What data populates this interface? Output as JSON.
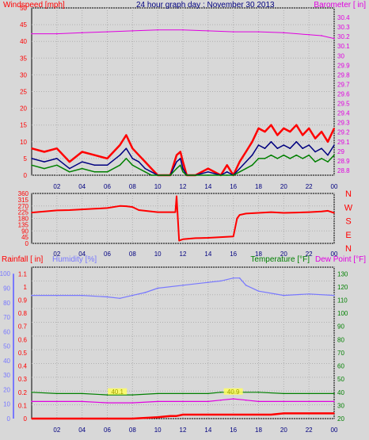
{
  "chart_data": [
    {
      "type": "line",
      "panel": "wind",
      "title": "24 hour graph day : November 30 2013",
      "ylabel_left": "Windspeed [mph]",
      "ylabel_right": "Barometer [ in]",
      "x_ticks": [
        "02",
        "04",
        "06",
        "08",
        "10",
        "12",
        "14",
        "16",
        "18",
        "20",
        "22",
        "00"
      ],
      "xlim": [
        0,
        24
      ],
      "left_ticks": [
        "0",
        "5",
        "10",
        "15",
        "20",
        "25",
        "30",
        "35",
        "40",
        "45",
        "50"
      ],
      "ylim_left": [
        0,
        50
      ],
      "right_ticks": [
        "28.8",
        "28.9",
        "29",
        "29.1",
        "29.2",
        "29.3",
        "29.4",
        "29.5",
        "29.6",
        "29.7",
        "29.8",
        "29.9",
        "30",
        "30.1",
        "30.2",
        "30.3",
        "30.4"
      ],
      "ylim_right": [
        28.75,
        30.5
      ],
      "grid": true,
      "series": [
        {
          "key": "gust",
          "color": "#ff0000",
          "x": [
            0,
            1,
            2,
            3,
            4,
            5,
            6,
            7,
            7.5,
            8,
            8.5,
            9,
            9.5,
            10,
            11,
            11.5,
            11.8,
            12,
            12.3,
            13,
            14,
            15,
            15.5,
            16,
            16.5,
            17,
            17.5,
            18,
            18.5,
            19,
            19.5,
            20,
            20.5,
            21,
            21.5,
            22,
            22.5,
            23,
            23.5,
            24
          ],
          "values": [
            8,
            7,
            8,
            4,
            7,
            6,
            5,
            9,
            12,
            8,
            6,
            4,
            2,
            0,
            0,
            6,
            7,
            4,
            0,
            0,
            2,
            0,
            3,
            0,
            4,
            7,
            10,
            14,
            13,
            15,
            12,
            14,
            13,
            15,
            12,
            14,
            11,
            13,
            10,
            14
          ]
        },
        {
          "key": "avg",
          "color": "#000080",
          "x": [
            0,
            1,
            2,
            3,
            4,
            5,
            6,
            7,
            7.5,
            8,
            8.5,
            9,
            9.5,
            10,
            11,
            11.5,
            11.8,
            12,
            12.3,
            13,
            14,
            15,
            15.5,
            16,
            16.5,
            17,
            17.5,
            18,
            18.5,
            19,
            19.5,
            20,
            20.5,
            21,
            21.5,
            22,
            22.5,
            23,
            23.5,
            24
          ],
          "values": [
            5,
            4,
            5,
            2,
            4,
            3,
            3,
            6,
            8,
            5,
            4,
            2,
            1,
            0,
            0,
            4,
            5,
            2,
            0,
            0,
            1,
            0,
            1,
            0,
            2,
            4,
            6,
            9,
            8,
            10,
            8,
            9,
            8,
            10,
            8,
            9,
            7,
            8,
            6,
            9
          ]
        },
        {
          "key": "wind",
          "color": "#008000",
          "x": [
            0,
            1,
            2,
            3,
            4,
            5,
            6,
            7,
            7.5,
            8,
            8.5,
            9,
            9.5,
            10,
            11,
            11.5,
            11.8,
            12,
            12.3,
            13,
            14,
            15,
            15.5,
            16,
            16.5,
            17,
            17.5,
            18,
            18.5,
            19,
            19.5,
            20,
            20.5,
            21,
            21.5,
            22,
            22.5,
            23,
            23.5,
            24
          ],
          "values": [
            3,
            2,
            3,
            1,
            2,
            1,
            1,
            3,
            5,
            3,
            2,
            1,
            0,
            0,
            0,
            2,
            3,
            1,
            0,
            0,
            0,
            0,
            0,
            0,
            1,
            2,
            3,
            5,
            5,
            6,
            5,
            6,
            5,
            6,
            5,
            6,
            4,
            5,
            4,
            6
          ]
        },
        {
          "key": "barometer",
          "color": "#e000e0",
          "x": [
            0,
            2,
            4,
            6,
            8,
            10,
            12,
            14,
            16,
            18,
            20,
            22,
            23,
            24
          ],
          "values": [
            30.23,
            30.23,
            30.24,
            30.25,
            30.26,
            30.27,
            30.27,
            30.26,
            30.25,
            30.25,
            30.24,
            30.22,
            30.21,
            30.18
          ]
        }
      ]
    },
    {
      "type": "line",
      "panel": "direction",
      "x_ticks": [
        "02",
        "04",
        "06",
        "08",
        "10",
        "12",
        "14",
        "16",
        "18",
        "20",
        "22",
        "00"
      ],
      "xlim": [
        0,
        24
      ],
      "left_ticks": [
        "0",
        "45",
        "90",
        "135",
        "180",
        "225",
        "270",
        "315",
        "360"
      ],
      "ylim": [
        0,
        360
      ],
      "right_labels": [
        "N",
        "W",
        "S",
        "E",
        "N"
      ],
      "grid": true,
      "series": [
        {
          "key": "direction",
          "color": "#ff0000",
          "x": [
            0,
            1,
            2,
            3,
            4,
            5,
            6,
            7,
            7.5,
            8,
            8.5,
            9,
            10,
            11,
            11.4,
            11.5,
            11.7,
            12,
            13,
            14,
            15,
            16,
            16.3,
            16.5,
            17,
            18,
            19,
            20,
            21,
            22,
            23,
            23.5,
            24
          ],
          "values": [
            222,
            230,
            238,
            240,
            245,
            250,
            255,
            270,
            268,
            262,
            240,
            235,
            225,
            225,
            225,
            340,
            20,
            30,
            38,
            40,
            45,
            50,
            180,
            205,
            215,
            220,
            225,
            220,
            222,
            225,
            230,
            235,
            220
          ]
        }
      ]
    },
    {
      "type": "line",
      "panel": "weather",
      "ylabel_left": "Rainfall [ in]",
      "ylabel_humidity": "Humidity [%]",
      "ylabel_temperature": "Temperature [°F]",
      "ylabel_dewpoint": "Dew Point [°F]",
      "x_ticks": [
        "02",
        "04",
        "06",
        "08",
        "10",
        "12",
        "14",
        "16",
        "18",
        "20",
        "22",
        "00"
      ],
      "xlim": [
        0,
        24
      ],
      "rain_ticks": [
        "0",
        "0.1",
        "0.2",
        "0.3",
        "0.4",
        "0.5",
        "0.6",
        "0.7",
        "0.8",
        "0.9",
        "1",
        "1.1"
      ],
      "humidity_ticks": [
        "0",
        "10",
        "20",
        "30",
        "40",
        "50",
        "60",
        "70",
        "80",
        "90",
        "100"
      ],
      "temp_ticks": [
        "20",
        "30",
        "40",
        "50",
        "60",
        "70",
        "80",
        "90",
        "100",
        "110",
        "120",
        "130"
      ],
      "ylim_temp": [
        20,
        135
      ],
      "grid": true,
      "series": [
        {
          "key": "humidity",
          "color": "#7878ff",
          "x": [
            0,
            2,
            4,
            6,
            7,
            8,
            9,
            10,
            12,
            14,
            15,
            16,
            16.5,
            17,
            18,
            20,
            22,
            24
          ],
          "values": [
            85,
            85,
            85,
            84,
            83,
            85,
            87,
            90,
            92,
            94,
            95,
            97,
            97,
            92,
            88,
            85,
            86,
            85
          ]
        },
        {
          "key": "temperature",
          "color": "#008000",
          "x": [
            0,
            2,
            4,
            6,
            8,
            10,
            12,
            14,
            15,
            16,
            18,
            20,
            22,
            24
          ],
          "values": [
            40,
            39,
            39,
            38,
            38,
            39,
            39,
            39,
            40,
            40,
            40,
            39,
            39,
            39
          ]
        },
        {
          "key": "dewpoint",
          "color": "#e000e0",
          "x": [
            0,
            2,
            4,
            6,
            8,
            10,
            12,
            14,
            15,
            16,
            17,
            18,
            20,
            22,
            24
          ],
          "values": [
            33,
            33,
            33,
            32,
            32,
            33,
            33,
            33,
            34,
            35,
            34,
            33,
            33,
            33,
            33
          ]
        },
        {
          "key": "rain",
          "color": "#ff0000",
          "x": [
            0,
            8,
            10,
            11,
            11.5,
            12,
            16,
            18,
            19,
            20,
            22,
            24
          ],
          "values": [
            0,
            0,
            0.01,
            0.02,
            0.02,
            0.03,
            0.03,
            0.03,
            0.03,
            0.04,
            0.04,
            0.04
          ]
        }
      ],
      "annotations": [
        {
          "text": "40.1",
          "x": 6.8,
          "y": 40
        },
        {
          "text": "40.9",
          "x": 16,
          "y": 40
        }
      ]
    }
  ]
}
